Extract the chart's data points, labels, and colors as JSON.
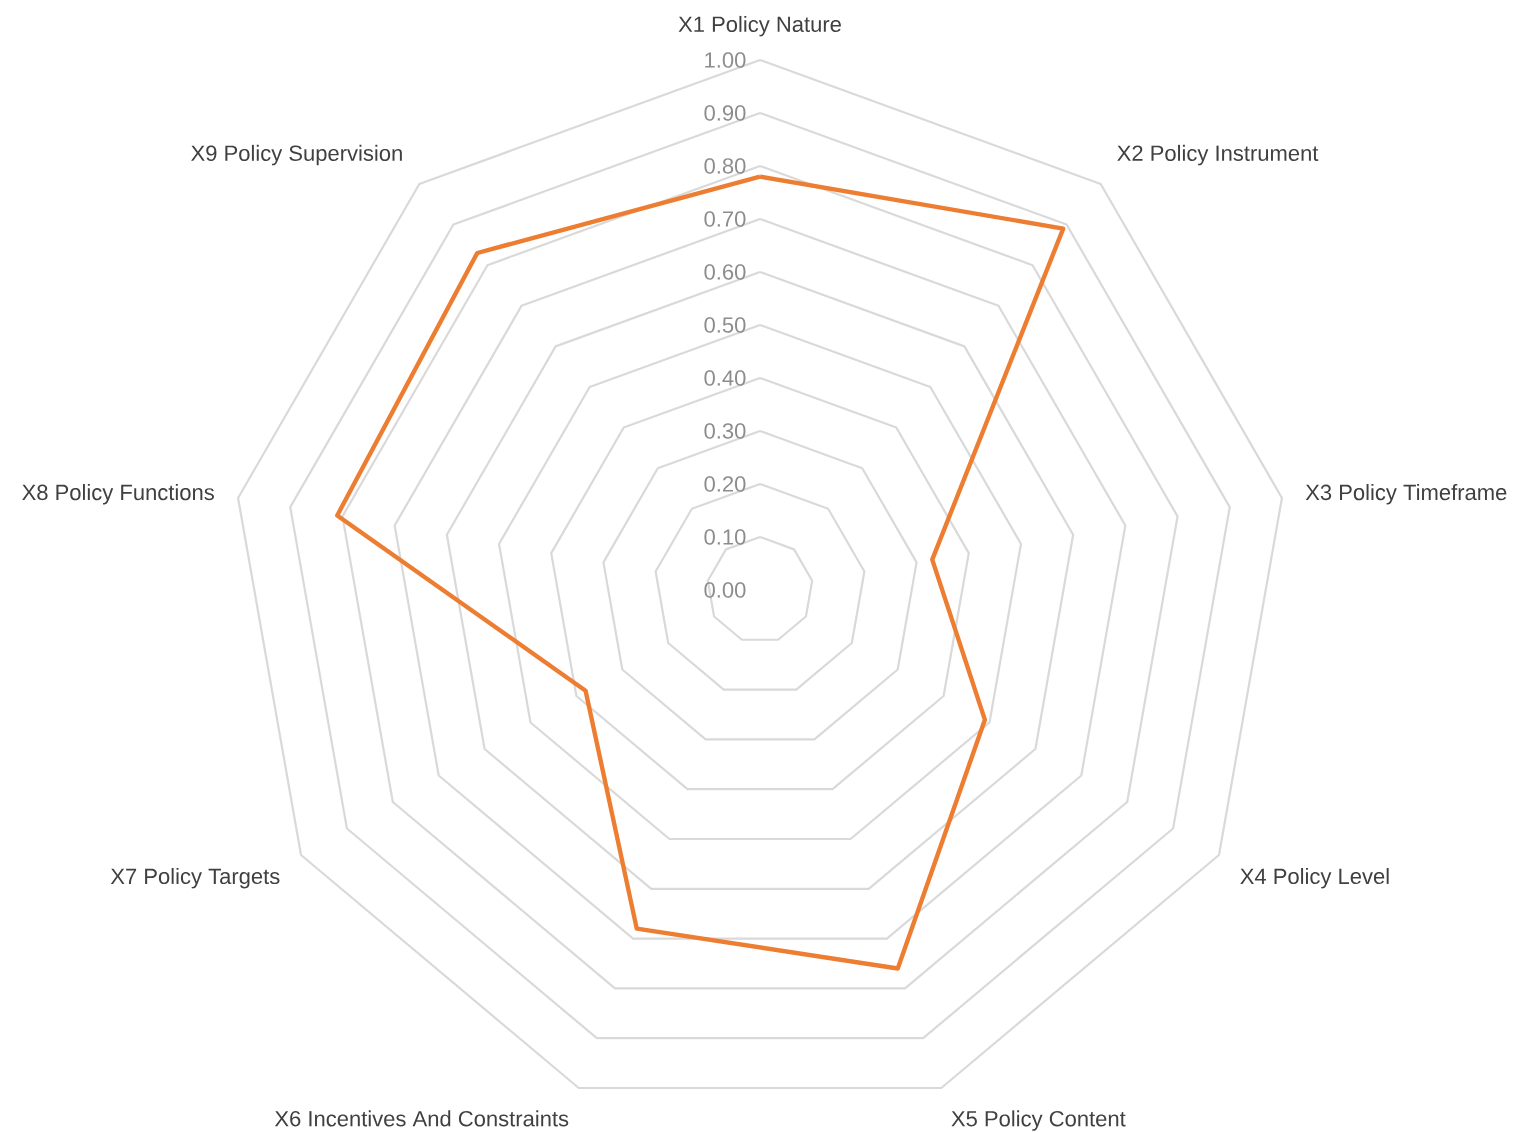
{
  "chart_data": {
    "type": "radar",
    "categories": [
      "X1 Policy Nature",
      "X2 Policy Instrument",
      "X3 Policy Timeframe",
      "X4 Policy Level",
      "X5 Policy Content",
      "X6 Incentives And Constraints",
      "X7 Policy Targets",
      "X8 Policy Functions",
      "X9 Policy Supervision"
    ],
    "series": [
      {
        "color": "#ed7d31",
        "values": [
          0.78,
          0.89,
          0.33,
          0.49,
          0.76,
          0.68,
          0.38,
          0.81,
          0.83
        ]
      }
    ],
    "ylim": [
      0,
      1
    ],
    "yticks": [
      {
        "value": 0,
        "label": "0.00"
      },
      {
        "value": 0.1,
        "label": "0.10"
      },
      {
        "value": 0.2,
        "label": "0.20"
      },
      {
        "value": 0.3,
        "label": "0.30"
      },
      {
        "value": 0.4,
        "label": "0.40"
      },
      {
        "value": 0.5,
        "label": "0.50"
      },
      {
        "value": 0.6,
        "label": "0.60"
      },
      {
        "value": 0.7,
        "label": "0.70"
      },
      {
        "value": 0.8,
        "label": "0.80"
      },
      {
        "value": 0.9,
        "label": "0.90"
      },
      {
        "value": 1,
        "label": "1.00"
      }
    ],
    "grid": true
  }
}
